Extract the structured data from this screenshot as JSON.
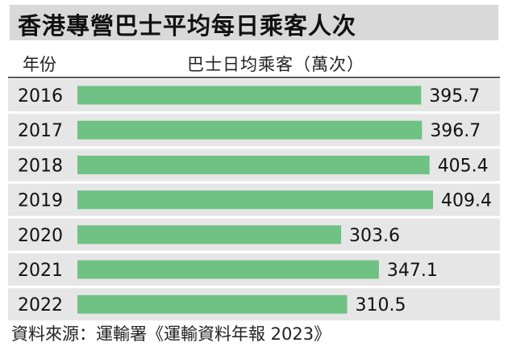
{
  "title": "香港專營巴士平均每日乘客人次",
  "header": {
    "year_label": "年份",
    "measure_label": "巴士日均乘客（萬次）"
  },
  "source": "資料來源：運輸署《運輸資料年報 2023》",
  "colors": {
    "bar": "#6fc184",
    "row_band": "#e6e6e6",
    "title_bg": "#d9d9d9"
  },
  "chart_data": {
    "type": "bar",
    "orientation": "horizontal",
    "categories": [
      "2016",
      "2017",
      "2018",
      "2019",
      "2020",
      "2021",
      "2022"
    ],
    "values": [
      395.7,
      396.7,
      405.4,
      409.4,
      303.6,
      347.1,
      310.5
    ],
    "value_labels": [
      "395.7",
      "396.7",
      "405.4",
      "409.4",
      "303.6",
      "347.1",
      "310.5"
    ],
    "xlim": [
      0,
      409.4
    ],
    "grid": false,
    "legend": "none"
  }
}
